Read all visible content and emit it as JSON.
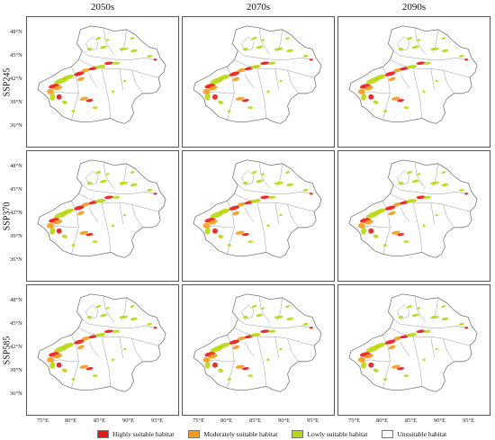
{
  "columns": [
    "2050s",
    "2070s",
    "2090s"
  ],
  "rows": [
    "SSP245",
    "SSP370",
    "SSP585"
  ],
  "lat_labels": [
    "48°N",
    "45°N",
    "42°N",
    "39°N",
    "36°N"
  ],
  "lon_labels": [
    "75°E",
    "80°E",
    "85°E",
    "90°E",
    "95°E"
  ],
  "legend": [
    {
      "label": "Highly suitable habitat",
      "color": "#e8171a"
    },
    {
      "label": "Moderately suitable habitat",
      "color": "#f39a1c"
    },
    {
      "label": "Lowly suitable habitat",
      "color": "#b9d60f"
    },
    {
      "label": "Unsuitable habitat",
      "color": "#ffffff"
    }
  ]
}
